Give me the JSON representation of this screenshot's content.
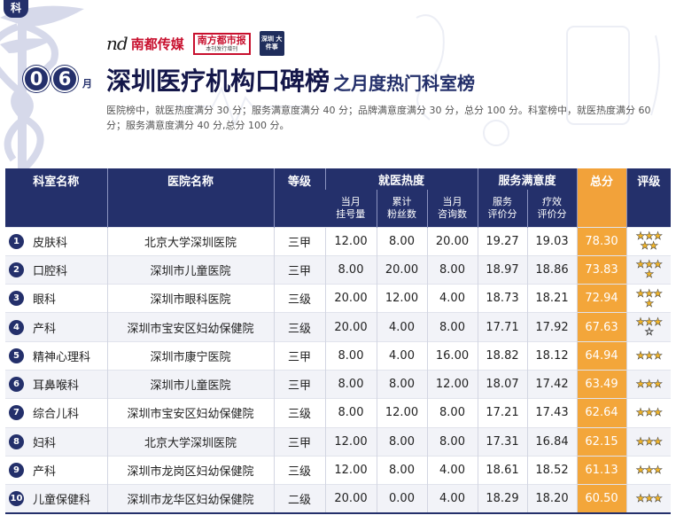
{
  "corner_tag": "科",
  "logos": {
    "nd_mark": "nd",
    "nd_name": "南都传媒",
    "nf_name": "南方都市报",
    "nf_sub": "本刊发行增刊",
    "sz_name": "深圳 大件事"
  },
  "month": {
    "digits": [
      "0",
      "6"
    ],
    "unit": "月"
  },
  "title": {
    "main": "深圳医疗机构口碑榜",
    "sub": "之月度热门科室榜"
  },
  "description": "医院榜中，就医热度满分 30 分；服务满意度满分 40 分；品牌满意度满分 30 分，总分 100 分。科室榜中，就医热度满分 60 分；服务满意度满分 40 分,总分 100 分。",
  "table": {
    "headers": {
      "dept": "科室名称",
      "hospital": "医院名称",
      "level": "等级",
      "heat": "就医热度",
      "service": "服务满意度",
      "total": "总分",
      "rating": "评级",
      "sub": [
        "当月\n挂号量",
        "累计\n粉丝数",
        "当月\n咨询数",
        "服务\n评价分",
        "疗效\n评价分"
      ]
    },
    "rows": [
      {
        "rank": "1",
        "dept": "皮肤科",
        "hospital": "北京大学深圳医院",
        "level": "三甲",
        "v1": "12.00",
        "v2": "8.00",
        "v3": "20.00",
        "s1": "19.27",
        "s2": "19.03",
        "total": "78.30",
        "stars": 5
      },
      {
        "rank": "2",
        "dept": "口腔科",
        "hospital": "深圳市儿童医院",
        "level": "三甲",
        "v1": "8.00",
        "v2": "20.00",
        "v3": "8.00",
        "s1": "18.97",
        "s2": "18.86",
        "total": "73.83",
        "stars": 4
      },
      {
        "rank": "3",
        "dept": "眼科",
        "hospital": "深圳市眼科医院",
        "level": "三级",
        "v1": "20.00",
        "v2": "12.00",
        "v3": "4.00",
        "s1": "18.73",
        "s2": "18.21",
        "total": "72.94",
        "stars": 4
      },
      {
        "rank": "4",
        "dept": "产科",
        "hospital": "深圳市宝安区妇幼保健院",
        "level": "三级",
        "v1": "20.00",
        "v2": "4.00",
        "v3": "8.00",
        "s1": "17.71",
        "s2": "17.92",
        "total": "67.63",
        "stars": 3.5
      },
      {
        "rank": "5",
        "dept": "精神心理科",
        "hospital": "深圳市康宁医院",
        "level": "三甲",
        "v1": "8.00",
        "v2": "4.00",
        "v3": "16.00",
        "s1": "18.82",
        "s2": "18.12",
        "total": "64.94",
        "stars": 3
      },
      {
        "rank": "6",
        "dept": "耳鼻喉科",
        "hospital": "深圳市儿童医院",
        "level": "三甲",
        "v1": "8.00",
        "v2": "8.00",
        "v3": "12.00",
        "s1": "18.07",
        "s2": "17.42",
        "total": "63.49",
        "stars": 3
      },
      {
        "rank": "7",
        "dept": "综合儿科",
        "hospital": "深圳市宝安区妇幼保健院",
        "level": "三级",
        "v1": "8.00",
        "v2": "12.00",
        "v3": "8.00",
        "s1": "17.21",
        "s2": "17.43",
        "total": "62.64",
        "stars": 3
      },
      {
        "rank": "8",
        "dept": "妇科",
        "hospital": "北京大学深圳医院",
        "level": "三甲",
        "v1": "12.00",
        "v2": "8.00",
        "v3": "8.00",
        "s1": "17.31",
        "s2": "16.84",
        "total": "62.15",
        "stars": 3
      },
      {
        "rank": "9",
        "dept": "产科",
        "hospital": "深圳市龙岗区妇幼保健院",
        "level": "三级",
        "v1": "12.00",
        "v2": "8.00",
        "v3": "4.00",
        "s1": "18.61",
        "s2": "18.52",
        "total": "61.13",
        "stars": 3
      },
      {
        "rank": "10",
        "dept": "儿童保健科",
        "hospital": "深圳市龙华区妇幼保健院",
        "level": "二级",
        "v1": "20.00",
        "v2": "0.00",
        "v3": "4.00",
        "s1": "18.29",
        "s2": "18.20",
        "total": "60.50",
        "stars": 3
      }
    ]
  },
  "colors": {
    "navy": "#24306b",
    "orange": "#f3a63a",
    "star": "#f0b429"
  }
}
